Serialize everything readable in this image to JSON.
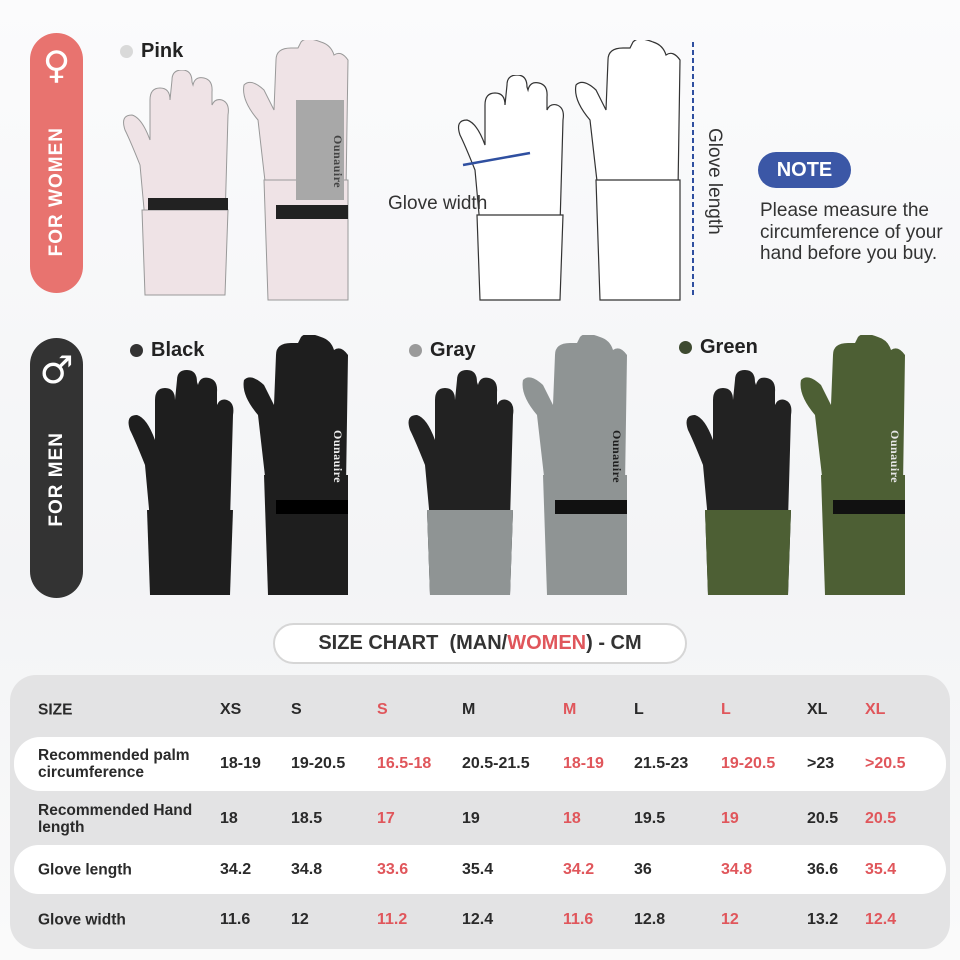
{
  "women": {
    "symbol": "♀",
    "label": "FOR WOMEN",
    "color": "#e8736f"
  },
  "men": {
    "symbol": "♂",
    "label": "FOR MEN",
    "color": "#333333"
  },
  "colors": [
    {
      "name": "Pink",
      "dot": "#d9d9d9",
      "glove": "#efe3e6",
      "accent": "#a8a8a8"
    },
    {
      "name": "Black",
      "dot": "#333333",
      "glove": "#1e1e1e",
      "accent": "#2b2b2b"
    },
    {
      "name": "Gray",
      "dot": "#9a9a9a",
      "glove": "#8f9494",
      "accent": "#2b2b2b"
    },
    {
      "name": "Green",
      "dot": "#3e4a30",
      "glove": "#4d5f34",
      "accent": "#2b2b2b"
    }
  ],
  "brand_on_glove": "Ounauire",
  "diagram": {
    "glove_width": "Glove width",
    "glove_length": "Glove length"
  },
  "note": {
    "badge": "NOTE",
    "text": "Please measure the circumference of your hand before you buy.",
    "badge_color": "#3b57a6"
  },
  "size_chart": {
    "title_prefix": "SIZE CHART  (MAN/",
    "title_women": "WOMEN",
    "title_suffix": ") - CM",
    "header": {
      "label": "SIZE",
      "sizes": [
        {
          "v": "XS",
          "w": false
        },
        {
          "v": "S",
          "w": false
        },
        {
          "v": "S",
          "w": true
        },
        {
          "v": "M",
          "w": false
        },
        {
          "v": "M",
          "w": true
        },
        {
          "v": "L",
          "w": false
        },
        {
          "v": "L",
          "w": true
        },
        {
          "v": "XL",
          "w": false
        },
        {
          "v": "XL",
          "w": true
        }
      ]
    },
    "rows": [
      {
        "label": "Recommended palm circumference",
        "values": [
          "18-19",
          "19-20.5",
          "16.5-18",
          "20.5-21.5",
          "18-19",
          "21.5-23",
          "19-20.5",
          ">23",
          ">20.5"
        ]
      },
      {
        "label": "Recommended Hand length",
        "values": [
          "18",
          "18.5",
          "17",
          "19",
          "18",
          "19.5",
          "19",
          "20.5",
          "20.5"
        ]
      },
      {
        "label": "Glove length",
        "values": [
          "34.2",
          "34.8",
          "33.6",
          "35.4",
          "34.2",
          "36",
          "34.8",
          "36.6",
          "35.4"
        ]
      },
      {
        "label": "Glove width",
        "values": [
          "11.6",
          "12",
          "11.2",
          "12.4",
          "11.6",
          "12.8",
          "12",
          "13.2",
          "12.4"
        ]
      }
    ],
    "women_color": "#e0565b"
  }
}
